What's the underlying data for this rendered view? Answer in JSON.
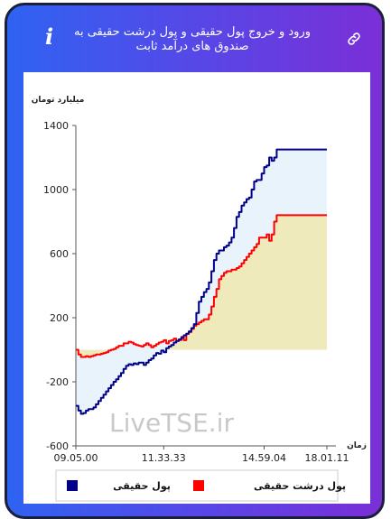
{
  "header": {
    "title": "ورود و خروج پول حقیقی و پول درشت حقیقی به صندوق های درآمد ثابت",
    "info_icon": "info-icon",
    "link_icon": "link-icon"
  },
  "colors": {
    "header_gradient_start": "#2f63f2",
    "header_gradient_end": "#7a2fd6",
    "series_real_money": "#00008b",
    "series_big_real_money": "#ff0000",
    "fill_positive": "#efeabc",
    "fill_negative": "#e9f3fb"
  },
  "watermark": "LiveTSE.ir",
  "chart_data": {
    "type": "line",
    "ylabel": "میلیارد تومان",
    "xlabel": "زمان",
    "ylim": [
      -600,
      1400
    ],
    "yticks": [
      -600,
      -200,
      200,
      600,
      1000,
      1400
    ],
    "x_range": [
      "09.05.00",
      "18.01.11"
    ],
    "xticks": [
      "09.05.00",
      "11.33.33",
      "14.59.04",
      "18.01.11"
    ],
    "x_tick_fractions": [
      0,
      0.35,
      0.75,
      1
    ],
    "legend_position": "bottom",
    "series": [
      {
        "name": "پول حقیقی",
        "color": "#00008b",
        "x": [
          0.0,
          0.01,
          0.02,
          0.03,
          0.04,
          0.05,
          0.06,
          0.07,
          0.08,
          0.09,
          0.1,
          0.11,
          0.12,
          0.13,
          0.14,
          0.15,
          0.16,
          0.17,
          0.18,
          0.19,
          0.2,
          0.21,
          0.22,
          0.23,
          0.24,
          0.25,
          0.26,
          0.27,
          0.28,
          0.29,
          0.3,
          0.31,
          0.32,
          0.33,
          0.34,
          0.35,
          0.36,
          0.37,
          0.38,
          0.39,
          0.4,
          0.41,
          0.42,
          0.43,
          0.44,
          0.45,
          0.46,
          0.47,
          0.48,
          0.49,
          0.5,
          0.51,
          0.52,
          0.53,
          0.54,
          0.55,
          0.56,
          0.57,
          0.58,
          0.59,
          0.6,
          0.61,
          0.62,
          0.63,
          0.64,
          0.65,
          0.66,
          0.67,
          0.68,
          0.69,
          0.7,
          0.71,
          0.72,
          0.73,
          0.74,
          0.75,
          0.76,
          0.77,
          0.78,
          0.79,
          0.8,
          0.81,
          1.0
        ],
        "y": [
          -350,
          -380,
          -400,
          -395,
          -380,
          -370,
          -370,
          -360,
          -340,
          -320,
          -300,
          -280,
          -260,
          -240,
          -220,
          -200,
          -185,
          -165,
          -145,
          -120,
          -100,
          -90,
          -95,
          -85,
          -90,
          -80,
          -80,
          -95,
          -80,
          -65,
          -55,
          -35,
          -20,
          -25,
          -5,
          -15,
          10,
          20,
          30,
          45,
          55,
          65,
          75,
          90,
          100,
          115,
          135,
          160,
          230,
          300,
          330,
          360,
          380,
          420,
          490,
          560,
          600,
          620,
          620,
          640,
          650,
          670,
          700,
          760,
          830,
          860,
          900,
          920,
          940,
          950,
          1000,
          1050,
          1060,
          1060,
          1100,
          1140,
          1150,
          1200,
          1180,
          1200,
          1250,
          1250,
          1250
        ]
      },
      {
        "name": "پول درشت حقیقی",
        "color": "#ff0000",
        "x": [
          0.0,
          0.01,
          0.02,
          0.03,
          0.04,
          0.05,
          0.06,
          0.07,
          0.08,
          0.09,
          0.1,
          0.11,
          0.12,
          0.13,
          0.14,
          0.15,
          0.16,
          0.17,
          0.18,
          0.19,
          0.2,
          0.21,
          0.22,
          0.23,
          0.24,
          0.25,
          0.26,
          0.27,
          0.28,
          0.29,
          0.3,
          0.31,
          0.32,
          0.33,
          0.34,
          0.35,
          0.36,
          0.37,
          0.38,
          0.39,
          0.4,
          0.41,
          0.42,
          0.43,
          0.44,
          0.45,
          0.46,
          0.47,
          0.48,
          0.49,
          0.5,
          0.51,
          0.52,
          0.53,
          0.54,
          0.55,
          0.56,
          0.57,
          0.58,
          0.59,
          0.6,
          0.61,
          0.62,
          0.63,
          0.64,
          0.65,
          0.66,
          0.67,
          0.68,
          0.69,
          0.7,
          0.71,
          0.72,
          0.73,
          0.74,
          0.75,
          0.76,
          0.77,
          0.78,
          0.79,
          0.8,
          0.81,
          1.0
        ],
        "y": [
          0,
          -30,
          -45,
          -45,
          -40,
          -45,
          -40,
          -35,
          -30,
          -30,
          -25,
          -20,
          -15,
          -5,
          0,
          5,
          15,
          25,
          25,
          40,
          40,
          50,
          45,
          35,
          30,
          25,
          20,
          30,
          40,
          30,
          15,
          25,
          35,
          45,
          50,
          60,
          40,
          55,
          60,
          70,
          55,
          60,
          80,
          60,
          100,
          110,
          130,
          150,
          160,
          170,
          180,
          190,
          190,
          220,
          270,
          330,
          380,
          440,
          460,
          480,
          490,
          490,
          500,
          500,
          510,
          520,
          540,
          560,
          580,
          600,
          620,
          640,
          660,
          700,
          700,
          700,
          720,
          680,
          720,
          800,
          840,
          840,
          840
        ]
      }
    ]
  },
  "legend": {
    "items": [
      {
        "label": "پول حقیقی",
        "color": "#00008b"
      },
      {
        "label": "پول درشت حقیقی",
        "color": "#ff0000"
      }
    ]
  }
}
